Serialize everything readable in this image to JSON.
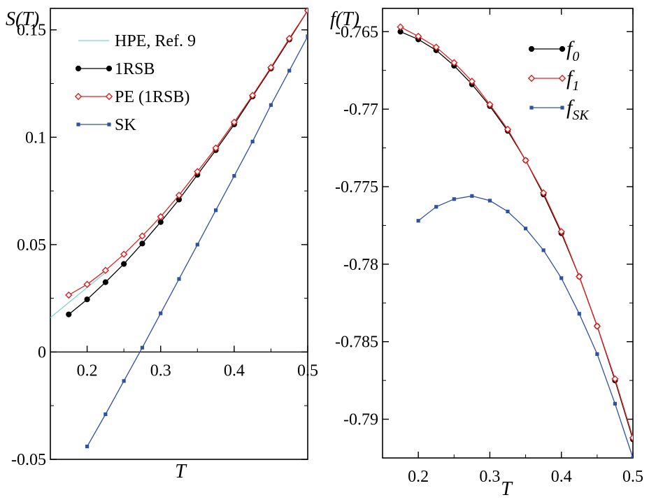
{
  "chart_data": [
    {
      "type": "line",
      "ylabel": "S(T)",
      "xlabel": "T",
      "xlim": [
        0.15,
        0.5
      ],
      "ylim": [
        -0.05,
        0.16
      ],
      "xticks": [
        "0.2",
        "0.3",
        "0.4",
        "0.5"
      ],
      "yticks": [
        "-0.05",
        "0",
        "0.05",
        "0.1",
        "0.15"
      ],
      "legend_position": "top-left",
      "series": [
        {
          "name": "HPE, Ref. 9",
          "color": "#7fd3d3",
          "marker": "none",
          "x": [
            0.15,
            0.175,
            0.2,
            0.225
          ],
          "y": [
            0.016,
            0.023,
            0.03,
            0.037
          ]
        },
        {
          "name": "1RSB",
          "color": "#000000",
          "marker": "circle",
          "x": [
            0.175,
            0.2,
            0.225,
            0.25,
            0.275,
            0.3,
            0.325,
            0.35,
            0.375,
            0.4,
            0.425,
            0.45,
            0.475,
            0.5
          ],
          "y": [
            0.0175,
            0.0245,
            0.0325,
            0.041,
            0.0505,
            0.0605,
            0.071,
            0.0825,
            0.094,
            0.106,
            0.119,
            0.132,
            0.1455,
            0.159
          ]
        },
        {
          "name": "PE (1RSB)",
          "color": "#e02020",
          "marker": "diamond-open",
          "x": [
            0.175,
            0.2,
            0.225,
            0.25,
            0.275,
            0.3,
            0.325,
            0.35,
            0.375,
            0.4,
            0.425,
            0.45,
            0.475,
            0.5
          ],
          "y": [
            0.0265,
            0.0315,
            0.038,
            0.0455,
            0.054,
            0.063,
            0.073,
            0.084,
            0.095,
            0.107,
            0.1195,
            0.1325,
            0.146,
            0.159
          ]
        },
        {
          "name": "SK",
          "color": "#3050a0",
          "marker": "square",
          "x": [
            0.2,
            0.225,
            0.25,
            0.275,
            0.3,
            0.325,
            0.35,
            0.375,
            0.4,
            0.425,
            0.45,
            0.475,
            0.5
          ],
          "y": [
            -0.044,
            -0.029,
            -0.0135,
            0.002,
            0.018,
            0.034,
            0.05,
            0.066,
            0.082,
            0.098,
            0.115,
            0.131,
            0.147
          ]
        }
      ]
    },
    {
      "type": "line",
      "ylabel": "f(T)",
      "xlabel": "T",
      "xlim": [
        0.15,
        0.5
      ],
      "ylim": [
        -0.7925,
        -0.7635
      ],
      "xticks": [
        "0.2",
        "0.3",
        "0.4",
        "0.5"
      ],
      "yticks": [
        "-0.765",
        "-0.77",
        "-0.775",
        "-0.78",
        "-0.785",
        "-0.79"
      ],
      "legend_position": "top-right",
      "series": [
        {
          "name": "f0",
          "legend_main": "f",
          "legend_sub": "0",
          "color": "#000000",
          "marker": "circle",
          "x": [
            0.175,
            0.2,
            0.225,
            0.25,
            0.275,
            0.3,
            0.325,
            0.35,
            0.375,
            0.4,
            0.425,
            0.45,
            0.475,
            0.5
          ],
          "y": [
            -0.765,
            -0.7655,
            -0.7662,
            -0.7672,
            -0.7684,
            -0.7698,
            -0.7714,
            -0.7733,
            -0.7755,
            -0.778,
            -0.7808,
            -0.784,
            -0.7875,
            -0.7913
          ]
        },
        {
          "name": "f1",
          "legend_main": "f",
          "legend_sub": "1",
          "color": "#e02020",
          "marker": "diamond-open",
          "x": [
            0.175,
            0.2,
            0.225,
            0.25,
            0.275,
            0.3,
            0.325,
            0.35,
            0.375,
            0.4,
            0.425,
            0.45,
            0.475,
            0.5
          ],
          "y": [
            -0.7647,
            -0.7653,
            -0.766,
            -0.767,
            -0.7682,
            -0.7697,
            -0.7713,
            -0.7733,
            -0.7754,
            -0.7779,
            -0.7808,
            -0.784,
            -0.7874,
            -0.7912
          ]
        },
        {
          "name": "fSK",
          "legend_main": "f",
          "legend_sub": "SK",
          "color": "#3050a0",
          "marker": "square",
          "x": [
            0.2,
            0.225,
            0.25,
            0.275,
            0.3,
            0.325,
            0.35,
            0.375,
            0.4,
            0.425,
            0.45,
            0.475,
            0.5
          ],
          "y": [
            -0.7772,
            -0.7763,
            -0.7758,
            -0.7756,
            -0.7759,
            -0.7766,
            -0.7777,
            -0.7791,
            -0.7809,
            -0.7832,
            -0.7858,
            -0.789,
            -0.7925
          ]
        }
      ]
    }
  ]
}
